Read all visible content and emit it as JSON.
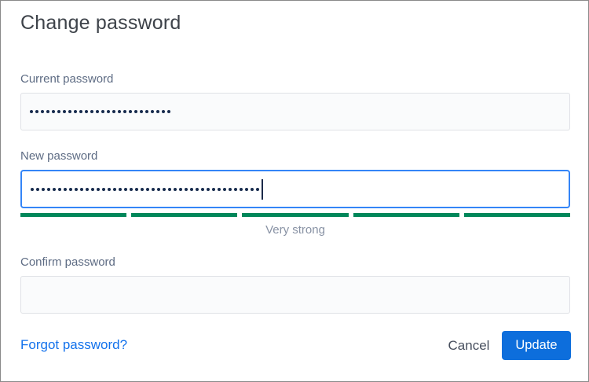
{
  "dialog": {
    "title": "Change password"
  },
  "fields": {
    "current": {
      "label": "Current password",
      "value_masked_length": 26,
      "placeholder": "",
      "focused": false
    },
    "new": {
      "label": "New password",
      "value_masked_length": 42,
      "placeholder": "",
      "focused": true
    },
    "confirm": {
      "label": "Confirm password",
      "value_masked_length": 0,
      "placeholder": "",
      "focused": false
    }
  },
  "strength": {
    "segments_total": 5,
    "segments_filled": 5,
    "label": "Very strong",
    "filled_color": "#00875a"
  },
  "footer": {
    "forgot_link_label": "Forgot password?",
    "cancel_label": "Cancel",
    "update_label": "Update"
  },
  "colors": {
    "accent_blue": "#0d6edc",
    "link_blue": "#1372ec",
    "focus_border_blue": "#3485f7",
    "strength_green": "#00875a",
    "label_gray_blue": "#5e6c84",
    "masked_dot_navy": "#172b4d"
  }
}
